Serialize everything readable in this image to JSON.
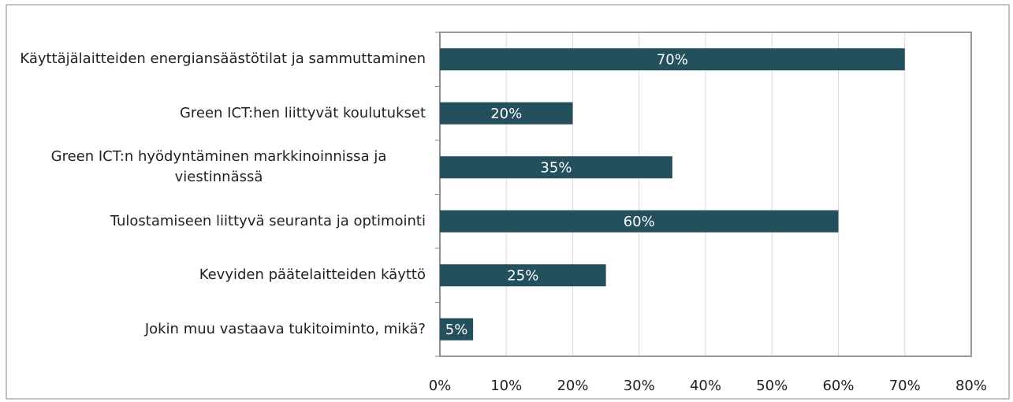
{
  "chart_data": {
    "type": "bar",
    "orientation": "horizontal",
    "categories": [
      "Käyttäjälaitteiden energiansäästötilat ja sammuttaminen",
      "Green ICT:hen liittyvät koulutukset",
      "Green ICT:n hyödyntäminen markkinoinnissa ja viestinnässä",
      "Tulostamiseen liittyvä seuranta ja optimointi",
      "Kevyiden päätelaitteiden käyttö",
      "Jokin muu vastaava tukitoiminto, mikä?"
    ],
    "values": [
      70,
      20,
      35,
      60,
      25,
      5
    ],
    "value_labels": [
      "70%",
      "20%",
      "35%",
      "60%",
      "25%",
      "5%"
    ],
    "color": "#244f5d",
    "xlim": [
      0,
      80
    ],
    "xticks": [
      {
        "value": 0,
        "label": "0%"
      },
      {
        "value": 10,
        "label": "10%"
      },
      {
        "value": 20,
        "label": "20%"
      },
      {
        "value": 30,
        "label": "30%"
      },
      {
        "value": 40,
        "label": "40%"
      },
      {
        "value": 50,
        "label": "50%"
      },
      {
        "value": 60,
        "label": "60%"
      },
      {
        "value": 70,
        "label": "70%"
      },
      {
        "value": 80,
        "label": "80%"
      }
    ],
    "grid": true
  }
}
